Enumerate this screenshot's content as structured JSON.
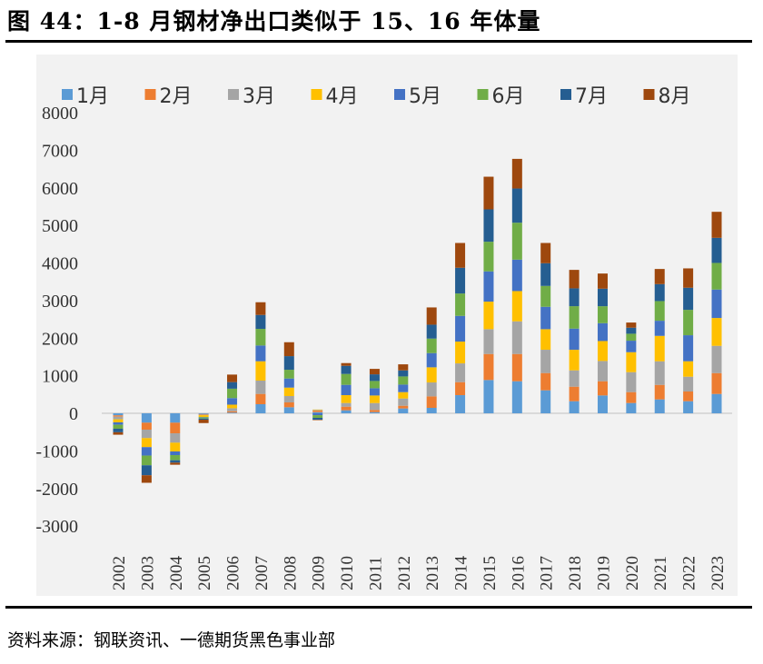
{
  "title": "图 44：1-8 月钢材净出口类似于 15、16 年体量",
  "source": "资料来源：钢联资讯、一德期货黑色事业部",
  "chart_data": {
    "type": "bar",
    "stacked": true,
    "title": "",
    "xlabel": "",
    "ylabel": "",
    "ylim": [
      -3000,
      8000
    ],
    "yticks": [
      8000,
      7000,
      6000,
      5000,
      4000,
      3000,
      2000,
      1000,
      0,
      -1000,
      -2000,
      -3000
    ],
    "legend_position": "top",
    "categories": [
      "2002",
      "2003",
      "2004",
      "2005",
      "2006",
      "2007",
      "2008",
      "2009",
      "2010",
      "2011",
      "2012",
      "2013",
      "2014",
      "2015",
      "2016",
      "2017",
      "2018",
      "2019",
      "2020",
      "2021",
      "2022",
      "2023"
    ],
    "series": [
      {
        "name": "1月",
        "color": "#5b9bd5",
        "values": [
          -55,
          -250,
          -250,
          -20,
          20,
          242,
          161,
          30,
          80,
          32,
          129,
          145,
          483,
          886,
          853,
          612,
          322,
          475,
          274,
          370,
          322,
          515
        ]
      },
      {
        "name": "2月",
        "color": "#ed7d31",
        "values": [
          -35,
          -185,
          -282,
          -15,
          35,
          274,
          129,
          40,
          97,
          56,
          72,
          306,
          346,
          692,
          725,
          459,
          386,
          378,
          290,
          386,
          258,
          555
        ]
      },
      {
        "name": "3月",
        "color": "#a5a5a5",
        "values": [
          -70,
          -225,
          -250,
          -15,
          80,
          354,
          169,
          20,
          97,
          185,
          193,
          370,
          499,
          660,
          869,
          620,
          435,
          539,
          531,
          628,
          394,
          725
        ]
      },
      {
        "name": "4月",
        "color": "#ffc000",
        "values": [
          -80,
          -240,
          -233,
          -50,
          95,
          515,
          225,
          10,
          209,
          201,
          169,
          403,
          580,
          733,
          805,
          547,
          547,
          531,
          531,
          676,
          411,
          741
        ]
      },
      {
        "name": "5月",
        "color": "#4472c4",
        "values": [
          -65,
          -225,
          -97,
          -10,
          175,
          419,
          242,
          -50,
          274,
          193,
          201,
          378,
          684,
          805,
          837,
          596,
          564,
          475,
          306,
          403,
          692,
          757
        ]
      },
      {
        "name": "6月",
        "color": "#70ad47",
        "values": [
          -105,
          -258,
          -137,
          -30,
          250,
          443,
          233,
          -70,
          290,
          193,
          217,
          386,
          596,
          789,
          982,
          555,
          596,
          451,
          185,
          523,
          676,
          708
        ]
      },
      {
        "name": "7月",
        "color": "#255e91",
        "values": [
          -95,
          -266,
          -64,
          -30,
          175,
          370,
          362,
          -50,
          217,
          177,
          161,
          370,
          684,
          861,
          910,
          604,
          475,
          467,
          161,
          451,
          588,
          668
        ]
      },
      {
        "name": "8月",
        "color": "#9e480e",
        "values": [
          -65,
          -200,
          -56,
          -90,
          200,
          338,
          370,
          -10,
          72,
          145,
          161,
          459,
          660,
          869,
          789,
          539,
          491,
          403,
          137,
          403,
          515,
          692
        ]
      }
    ]
  }
}
